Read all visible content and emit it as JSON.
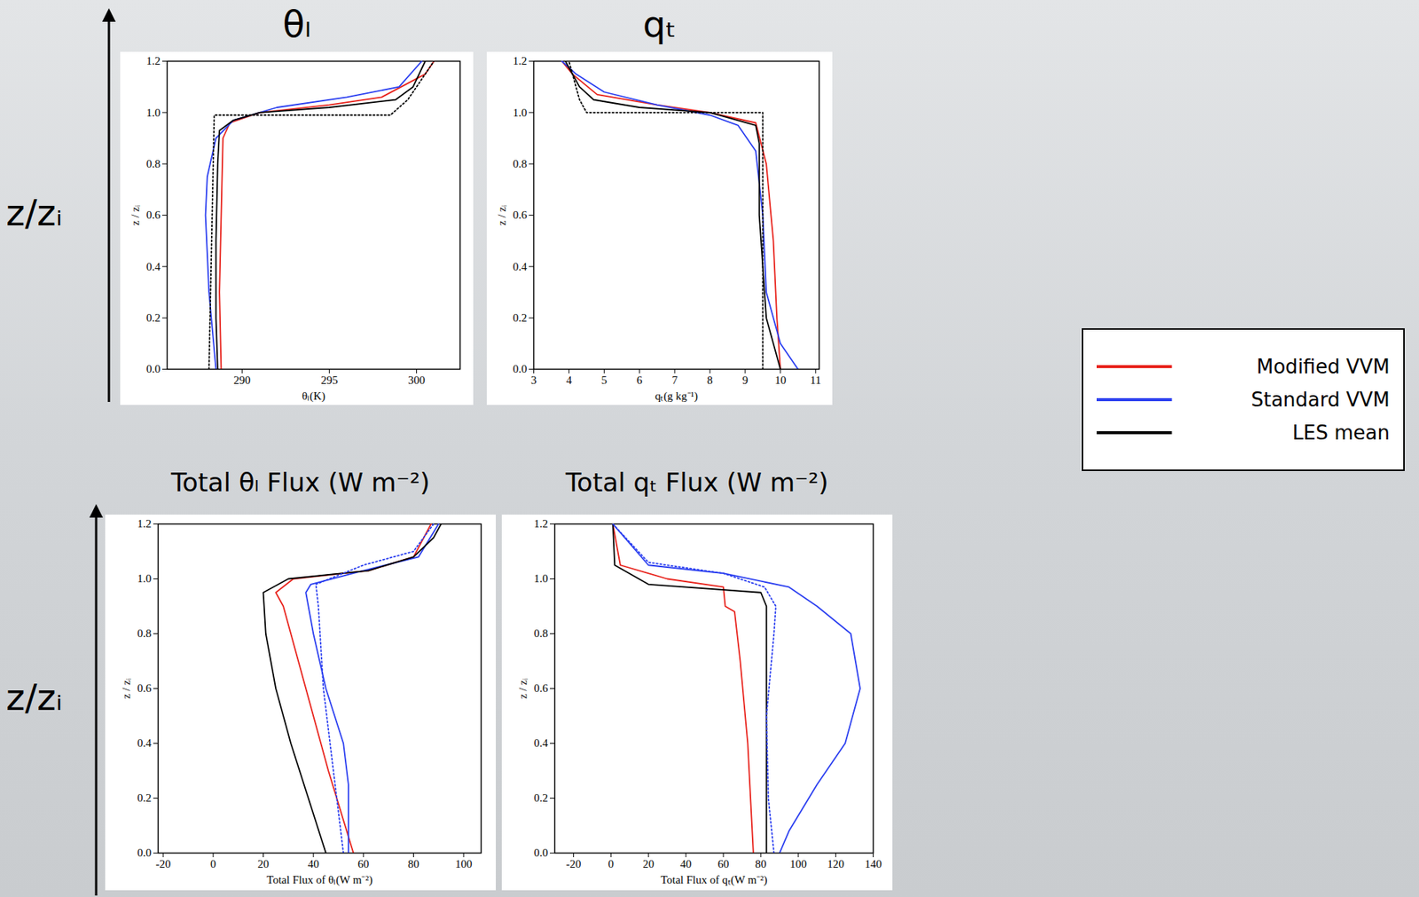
{
  "figure": {
    "row_labels": [
      "z/zᵢ",
      "z/zᵢ"
    ],
    "legend": "right"
  },
  "chart_data": [
    {
      "type": "line",
      "title": "θₗ",
      "xlabel": "θₗ(K)",
      "ylabel": "z / zᵢ",
      "grid": false,
      "xlim": [
        285.7,
        302.5
      ],
      "xticks": [
        290,
        295,
        300
      ],
      "ylim": [
        0,
        1.2
      ],
      "yticks": [
        {
          "value": 0,
          "label": "0.0"
        },
        {
          "value": 0.2,
          "label": "0.2"
        },
        {
          "value": 0.4,
          "label": "0.4"
        },
        {
          "value": 0.6,
          "label": "0.6"
        },
        {
          "value": 0.8,
          "label": "0.8"
        },
        {
          "value": 1,
          "label": "1.0"
        },
        {
          "value": 1.2,
          "label": "1.2"
        }
      ],
      "series": [
        {
          "name": "Modified VVM",
          "color": "#e8231c",
          "line_style": "solid",
          "x": [
            288.8,
            288.7,
            288.8,
            288.9,
            289.3,
            291,
            295,
            298,
            300.5,
            301
          ],
          "y": [
            0,
            0.3,
            0.6,
            0.9,
            0.96,
            1.0,
            1.03,
            1.06,
            1.15,
            1.2
          ]
        },
        {
          "name": "Standard VVM",
          "color": "#2b3ff0",
          "line_style": "solid",
          "x": [
            288.5,
            288.1,
            287.9,
            288.0,
            288.5,
            289.5,
            292,
            296,
            299,
            300.3
          ],
          "y": [
            0,
            0.3,
            0.6,
            0.75,
            0.9,
            0.97,
            1.02,
            1.06,
            1.1,
            1.2
          ]
        },
        {
          "name": "LES mean",
          "color": "#000000",
          "line_style": "solid",
          "x": [
            288.6,
            288.5,
            288.5,
            288.6,
            288.7,
            289.5,
            291,
            295,
            298.8,
            299.8,
            300.5
          ],
          "y": [
            0,
            0.2,
            0.5,
            0.8,
            0.93,
            0.97,
            1.0,
            1.02,
            1.05,
            1.1,
            1.2
          ]
        },
        {
          "color": "#000000",
          "line_style": "dotted",
          "x": [
            288.1,
            288.4,
            298.5,
            299.5,
            301
          ],
          "y": [
            0,
            0.99,
            0.99,
            1.05,
            1.2
          ]
        }
      ]
    },
    {
      "type": "line",
      "title": "qₜ",
      "xlabel": "qₜ(g kg⁻¹)",
      "ylabel": "z / zᵢ",
      "grid": false,
      "xlim": [
        3,
        11.1
      ],
      "xticks": [
        3,
        4,
        5,
        6,
        7,
        8,
        9,
        10,
        11
      ],
      "ylim": [
        0,
        1.2
      ],
      "yticks": [
        {
          "value": 0,
          "label": "0.0"
        },
        {
          "value": 0.2,
          "label": "0.2"
        },
        {
          "value": 0.4,
          "label": "0.4"
        },
        {
          "value": 0.6,
          "label": "0.6"
        },
        {
          "value": 0.8,
          "label": "0.8"
        },
        {
          "value": 1,
          "label": "1.0"
        },
        {
          "value": 1.2,
          "label": "1.2"
        }
      ],
      "series": [
        {
          "name": "Modified VVM",
          "color": "#e8231c",
          "line_style": "solid",
          "x": [
            10.0,
            9.9,
            9.8,
            9.6,
            9.3,
            8,
            6.5,
            4.8,
            4.1,
            3.8
          ],
          "y": [
            0,
            0.2,
            0.5,
            0.8,
            0.96,
            1.0,
            1.03,
            1.07,
            1.15,
            1.2
          ]
        },
        {
          "name": "Standard VVM",
          "color": "#2b3ff0",
          "line_style": "solid",
          "x": [
            10.5,
            10,
            9.6,
            9.5,
            9.3,
            8.8,
            8,
            6.5,
            5,
            4.2,
            3.8
          ],
          "y": [
            0,
            0.1,
            0.3,
            0.6,
            0.85,
            0.95,
            0.99,
            1.03,
            1.08,
            1.15,
            1.2
          ]
        },
        {
          "name": "LES mean",
          "color": "#000000",
          "line_style": "solid",
          "x": [
            10.0,
            9.6,
            9.4,
            9.4,
            9.3,
            8.0,
            6,
            4.7,
            4.3,
            3.9
          ],
          "y": [
            0,
            0.2,
            0.6,
            0.88,
            0.95,
            1.0,
            1.02,
            1.05,
            1.1,
            1.2
          ]
        },
        {
          "color": "#000000",
          "line_style": "dotted",
          "x": [
            9.5,
            9.5,
            4.5,
            4.3,
            4
          ],
          "y": [
            0,
            1.0,
            1.0,
            1.05,
            1.2
          ]
        }
      ]
    },
    {
      "type": "line",
      "title": "Total θₗ Flux (W m⁻²)",
      "xlabel": "Total Flux of θₗ(W m⁻²)",
      "ylabel": "z / zᵢ",
      "grid": false,
      "xlim": [
        -22,
        107
      ],
      "xticks": [
        -20,
        0,
        20,
        40,
        60,
        80,
        100
      ],
      "ylim": [
        0,
        1.2
      ],
      "yticks": [
        {
          "value": 0,
          "label": "0.0"
        },
        {
          "value": 0.2,
          "label": "0.2"
        },
        {
          "value": 0.4,
          "label": "0.4"
        },
        {
          "value": 0.6,
          "label": "0.6"
        },
        {
          "value": 0.8,
          "label": "0.8"
        },
        {
          "value": 1,
          "label": "1.0"
        },
        {
          "value": 1.2,
          "label": "1.2"
        }
      ],
      "series": [
        {
          "name": "Modified VVM",
          "color": "#e8231c",
          "line_style": "solid",
          "x": [
            56,
            46,
            37,
            28,
            25,
            32,
            62,
            80,
            87
          ],
          "y": [
            0,
            0.3,
            0.6,
            0.9,
            0.95,
            1.0,
            1.03,
            1.08,
            1.2
          ]
        },
        {
          "name": "Standard VVM",
          "color": "#2b3ff0",
          "line_style": "solid",
          "x": [
            54,
            54,
            54,
            52,
            45,
            40,
            37,
            39,
            60,
            82,
            90
          ],
          "y": [
            0,
            0.1,
            0.25,
            0.4,
            0.6,
            0.8,
            0.95,
            0.98,
            1.03,
            1.08,
            1.2
          ]
        },
        {
          "name": "LES mean",
          "color": "#000000",
          "line_style": "solid",
          "x": [
            45,
            31,
            25,
            21,
            20,
            30,
            62,
            80,
            88,
            91
          ],
          "y": [
            0,
            0.4,
            0.6,
            0.8,
            0.95,
            1.0,
            1.03,
            1.08,
            1.15,
            1.2
          ]
        },
        {
          "color": "#2b3ff0",
          "line_style": "dotted",
          "x": [
            52,
            48,
            44,
            42,
            41,
            60,
            80,
            88
          ],
          "y": [
            0,
            0.3,
            0.6,
            0.9,
            0.98,
            1.05,
            1.1,
            1.2
          ]
        }
      ]
    },
    {
      "type": "line",
      "title": "Total qₜ Flux (W m⁻²)",
      "xlabel": "Total Flux of qₜ(W m⁻²)",
      "ylabel": "z / zᵢ",
      "grid": false,
      "xlim": [
        -30,
        140
      ],
      "xticks": [
        -20,
        0,
        20,
        40,
        60,
        80,
        100,
        120,
        140
      ],
      "ylim": [
        0,
        1.2
      ],
      "yticks": [
        {
          "value": 0,
          "label": "0.0"
        },
        {
          "value": 0.2,
          "label": "0.2"
        },
        {
          "value": 0.4,
          "label": "0.4"
        },
        {
          "value": 0.6,
          "label": "0.6"
        },
        {
          "value": 0.8,
          "label": "0.8"
        },
        {
          "value": 1,
          "label": "1.0"
        },
        {
          "value": 1.2,
          "label": "1.2"
        }
      ],
      "series": [
        {
          "name": "Modified VVM",
          "color": "#e8231c",
          "line_style": "solid",
          "x": [
            76,
            73,
            69,
            66,
            61,
            60,
            30,
            5,
            1
          ],
          "y": [
            0,
            0.4,
            0.7,
            0.88,
            0.9,
            0.97,
            1.0,
            1.05,
            1.2
          ]
        },
        {
          "name": "Standard VVM",
          "color": "#2b3ff0",
          "line_style": "solid",
          "x": [
            90,
            95,
            110,
            125,
            133,
            128,
            110,
            95,
            60,
            20,
            1
          ],
          "y": [
            0,
            0.08,
            0.25,
            0.4,
            0.6,
            0.8,
            0.9,
            0.97,
            1.02,
            1.05,
            1.2
          ]
        },
        {
          "name": "LES mean",
          "color": "#000000",
          "line_style": "solid",
          "x": [
            83,
            83,
            83,
            80,
            20,
            2,
            1
          ],
          "y": [
            0,
            0.5,
            0.9,
            0.95,
            0.98,
            1.05,
            1.2
          ]
        },
        {
          "color": "#2b3ff0",
          "line_style": "dotted",
          "x": [
            87,
            84,
            83,
            87,
            88,
            82,
            60,
            20,
            1
          ],
          "y": [
            0,
            0.2,
            0.5,
            0.8,
            0.9,
            0.97,
            1.02,
            1.06,
            1.2
          ]
        }
      ]
    }
  ]
}
